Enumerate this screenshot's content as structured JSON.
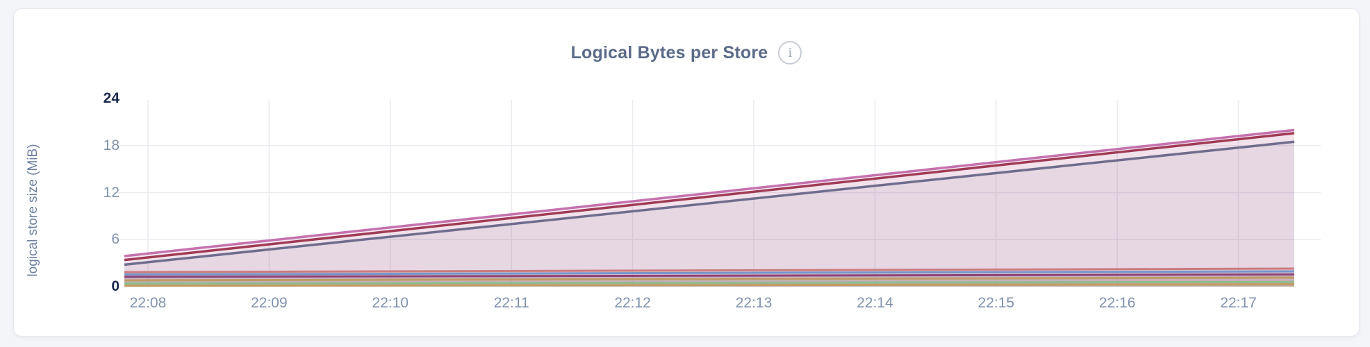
{
  "card": {
    "background": "#ffffff"
  },
  "chart": {
    "title": "Logical Bytes per Store",
    "info_glyph": "i",
    "y_axis": {
      "title": "logical store size (MiB)"
    },
    "colors": {
      "grid": "#ebebf0",
      "tick_label": "#8294ac",
      "tick_label_emphasis": "#1a2a4f",
      "title_text": "#5b6b87",
      "area_wash": "#ead9e4"
    }
  },
  "chart_data": {
    "type": "area",
    "title": "Logical Bytes per Store",
    "xlabel": "",
    "ylabel": "logical store size (MiB)",
    "ylim": [
      0,
      24
    ],
    "y_ticks": [
      0,
      6,
      12,
      18,
      24
    ],
    "y_ticks_emphasized": [
      0,
      24
    ],
    "x_ticks": [
      "22:08",
      "22:09",
      "22:10",
      "22:11",
      "22:12",
      "22:13",
      "22:14",
      "22:15",
      "22:16",
      "22:17"
    ],
    "x_tick_interval": "1 minute",
    "grid": true,
    "legend_position": "none",
    "note": "straight-line (linear) growth between start and end of the visible window; window begins slightly before 22:08 and ends slightly after 22:17",
    "series": [
      {
        "id": "series-1",
        "color_name": "pink",
        "color": "#c472ae",
        "width": 3.5,
        "fill_opacity": 0.14,
        "start_mib": 3.9,
        "end_mib": 20.0,
        "trend": "rising"
      },
      {
        "id": "series-2",
        "color_name": "dark-red",
        "color": "#a03b55",
        "width": 3.5,
        "fill_opacity": 0.05,
        "start_mib": 3.4,
        "end_mib": 19.6,
        "trend": "rising"
      },
      {
        "id": "series-3",
        "color_name": "slate-purple",
        "color": "#6f6d8e",
        "width": 3.5,
        "fill_opacity": 0.09,
        "start_mib": 2.8,
        "end_mib": 18.5,
        "trend": "rising"
      },
      {
        "id": "series-4",
        "color_name": "salmon",
        "color": "#cb7c7e",
        "width": 3.0,
        "fill_opacity": 0.13,
        "start_mib": 1.85,
        "end_mib": 2.3,
        "trend": "flat"
      },
      {
        "id": "series-5",
        "color_name": "steel-blue",
        "color": "#7795ca",
        "width": 3.0,
        "fill_opacity": 0.12,
        "start_mib": 1.55,
        "end_mib": 1.95,
        "trend": "flat"
      },
      {
        "id": "series-6",
        "color_name": "plum",
        "color": "#8d4374",
        "width": 3.0,
        "fill_opacity": 0.12,
        "start_mib": 1.25,
        "end_mib": 1.55,
        "trend": "flat"
      },
      {
        "id": "series-7",
        "color_name": "tan",
        "color": "#bf9b65",
        "width": 3.0,
        "fill_opacity": 0.14,
        "start_mib": 0.8,
        "end_mib": 1.15,
        "trend": "flat"
      },
      {
        "id": "series-8",
        "color_name": "green",
        "color": "#8fbb8d",
        "width": 3.0,
        "fill_opacity": 0.16,
        "start_mib": 0.4,
        "end_mib": 0.6,
        "trend": "flat"
      },
      {
        "id": "series-9",
        "color_name": "camel",
        "color": "#c39a60",
        "width": 3.0,
        "fill_opacity": 0.15,
        "start_mib": 0.1,
        "end_mib": 0.3,
        "trend": "flat"
      }
    ]
  }
}
